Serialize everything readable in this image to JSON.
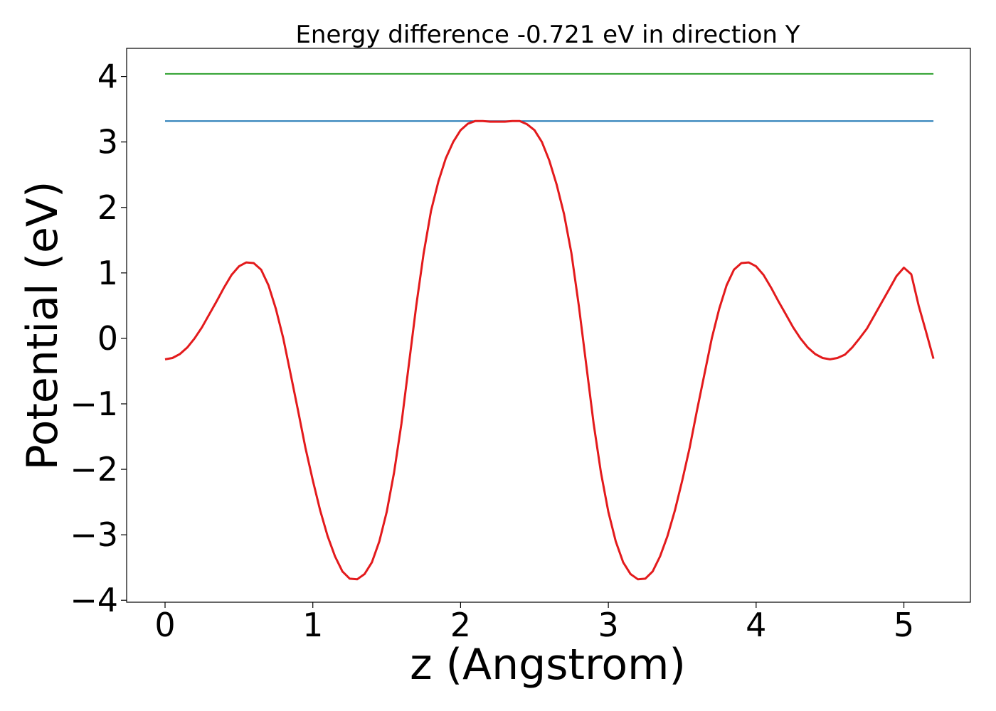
{
  "chart_data": {
    "type": "line",
    "title": "Energy difference -0.721 eV in direction Y",
    "xlabel": "z (Angstrom)",
    "ylabel": "Potential (eV)",
    "xlim": [
      -0.26,
      5.45
    ],
    "ylim": [
      -4.03,
      4.43
    ],
    "xticks": [
      0,
      1,
      2,
      3,
      4,
      5
    ],
    "xtick_labels": [
      "0",
      "1",
      "2",
      "3",
      "4",
      "5"
    ],
    "yticks": [
      -4,
      -3,
      -2,
      -1,
      0,
      1,
      2,
      3,
      4
    ],
    "ytick_labels": [
      "−4",
      "−3",
      "−2",
      "−1",
      "0",
      "1",
      "2",
      "3",
      "4"
    ],
    "grid": false,
    "legend": false,
    "series": [
      {
        "color": "#2ca02c",
        "x": [
          0,
          5.2
        ],
        "y": [
          4.04,
          4.04
        ]
      },
      {
        "color": "#1f77b4",
        "x": [
          0,
          5.2
        ],
        "y": [
          3.32,
          3.32
        ]
      },
      {
        "color": "#e31a1c",
        "x": [
          0,
          0.05,
          0.1,
          0.15,
          0.2,
          0.25,
          0.3,
          0.35,
          0.4,
          0.45,
          0.5,
          0.55,
          0.6,
          0.65,
          0.7,
          0.75,
          0.8,
          0.85,
          0.9,
          0.95,
          1.0,
          1.05,
          1.1,
          1.15,
          1.2,
          1.25,
          1.3,
          1.35,
          1.4,
          1.45,
          1.5,
          1.55,
          1.6,
          1.65,
          1.7,
          1.75,
          1.8,
          1.85,
          1.9,
          1.95,
          2.0,
          2.05,
          2.1,
          2.15,
          2.2,
          2.25,
          2.3,
          2.35,
          2.4,
          2.45,
          2.5,
          2.55,
          2.6,
          2.65,
          2.7,
          2.75,
          2.8,
          2.85,
          2.9,
          2.95,
          3.0,
          3.05,
          3.1,
          3.15,
          3.2,
          3.25,
          3.3,
          3.35,
          3.4,
          3.45,
          3.5,
          3.55,
          3.6,
          3.65,
          3.7,
          3.75,
          3.8,
          3.85,
          3.9,
          3.95,
          4.0,
          4.05,
          4.1,
          4.15,
          4.2,
          4.25,
          4.3,
          4.35,
          4.4,
          4.45,
          4.5,
          4.55,
          4.6,
          4.65,
          4.7,
          4.75,
          4.8,
          4.85,
          4.9,
          4.95,
          5.0,
          5.05,
          5.1,
          5.15,
          5.2
        ],
        "y": [
          -0.32,
          -0.3,
          -0.24,
          -0.14,
          0.0,
          0.17,
          0.37,
          0.57,
          0.78,
          0.97,
          1.1,
          1.16,
          1.15,
          1.05,
          0.81,
          0.45,
          0.0,
          -0.55,
          -1.1,
          -1.67,
          -2.17,
          -2.63,
          -3.02,
          -3.33,
          -3.56,
          -3.67,
          -3.68,
          -3.6,
          -3.42,
          -3.1,
          -2.65,
          -2.05,
          -1.3,
          -0.4,
          0.5,
          1.3,
          1.95,
          2.4,
          2.75,
          3.0,
          3.18,
          3.28,
          3.32,
          3.32,
          3.31,
          3.31,
          3.31,
          3.32,
          3.32,
          3.27,
          3.18,
          3.0,
          2.72,
          2.35,
          1.9,
          1.3,
          0.5,
          -0.4,
          -1.3,
          -2.05,
          -2.65,
          -3.1,
          -3.42,
          -3.6,
          -3.68,
          -3.67,
          -3.56,
          -3.33,
          -3.02,
          -2.63,
          -2.17,
          -1.67,
          -1.1,
          -0.55,
          0.0,
          0.45,
          0.81,
          1.05,
          1.15,
          1.16,
          1.1,
          0.97,
          0.78,
          0.57,
          0.37,
          0.17,
          0.0,
          -0.14,
          -0.24,
          -0.3,
          -0.32,
          -0.3,
          -0.25,
          -0.14,
          0.0,
          0.15,
          0.35,
          0.55,
          0.75,
          0.95,
          1.08,
          0.98,
          0.5,
          0.1,
          -0.31
        ]
      }
    ]
  }
}
